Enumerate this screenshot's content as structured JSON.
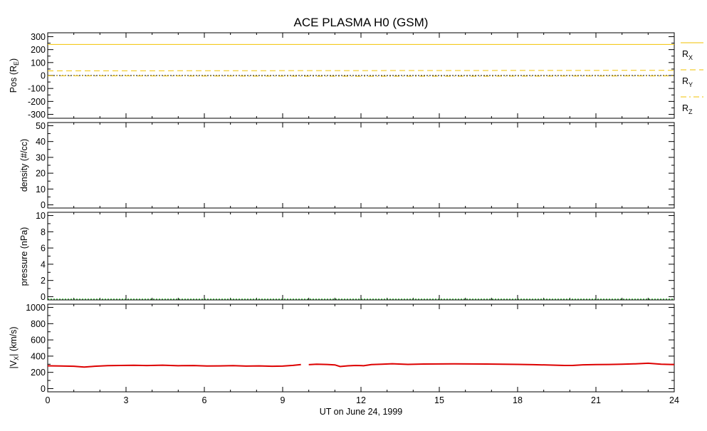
{
  "title": "ACE PLASMA H0 (GSM)",
  "xlabel": "UT on June 24, 1999",
  "x_ticks": [
    "0",
    "3",
    "6",
    "9",
    "12",
    "15",
    "18",
    "21",
    "24"
  ],
  "colors": {
    "position": "#f2c200",
    "position_zero": "#000000",
    "density": "#0000ff",
    "pressure": "#00a000",
    "velocity": "#dd0000"
  },
  "chart_data": [
    {
      "type": "line",
      "panel": "position",
      "ylabel_main": "Pos (R",
      "ylabel_sub": "E",
      "ylabel_end": ")",
      "y_ticks": [
        "300",
        "200",
        "100",
        "0",
        "-100",
        "-200",
        "-300"
      ],
      "ylim": [
        -330,
        330
      ],
      "xlim": [
        0,
        24
      ],
      "series": [
        {
          "name": "R",
          "name_sub": "X",
          "style": "solid",
          "x": [
            0,
            24
          ],
          "values": [
            240,
            240
          ]
        },
        {
          "name": "R",
          "name_sub": "Y",
          "style": "dashed",
          "x": [
            0,
            6,
            12,
            18,
            24
          ],
          "values": [
            36,
            37,
            38,
            39,
            40
          ]
        },
        {
          "name": "R",
          "name_sub": "Z",
          "style": "dashdot",
          "x": [
            0,
            6,
            12,
            18,
            24
          ],
          "values": [
            -2,
            -4,
            -6,
            -5,
            -3
          ]
        }
      ]
    },
    {
      "type": "line",
      "panel": "density",
      "ylabel": "density (#/cc)",
      "y_ticks": [
        "50",
        "40",
        "30",
        "20",
        "10",
        "0"
      ],
      "ylim": [
        -2,
        52
      ],
      "xlim": [
        0,
        24
      ],
      "series": []
    },
    {
      "type": "line",
      "panel": "pressure",
      "ylabel": "pressure (nPa)",
      "y_ticks": [
        "10",
        "8",
        "6",
        "4",
        "2",
        "0"
      ],
      "ylim": [
        -0.4,
        10.4
      ],
      "xlim": [
        0,
        24
      ],
      "series": [
        {
          "style": "dotted",
          "x": [
            0,
            24
          ],
          "values": [
            -0.3,
            -0.3
          ]
        }
      ]
    },
    {
      "type": "line",
      "panel": "velocity",
      "ylabel_main": "|V",
      "ylabel_sub": "X",
      "ylabel_end": "| (km/s)",
      "y_ticks": [
        "1000",
        "800",
        "600",
        "400",
        "200",
        "0"
      ],
      "ylim": [
        -40,
        1040
      ],
      "xlim": [
        0,
        24
      ],
      "series": [
        {
          "style": "solid",
          "segments": [
            {
              "x": [
                0,
                0.5,
                1.0,
                1.4,
                1.8,
                2.3,
                2.8,
                3.3,
                3.8,
                4.4,
                5.0,
                5.6,
                6.1,
                6.6,
                7.1,
                7.6,
                8.1,
                8.6,
                9.0,
                9.4,
                9.7
              ],
              "values": [
                280,
                278,
                275,
                265,
                275,
                283,
                285,
                287,
                284,
                288,
                282,
                284,
                278,
                279,
                283,
                277,
                279,
                275,
                277,
                286,
                296
              ]
            },
            {
              "x": [
                10.0,
                10.3,
                10.7,
                11.0,
                11.2,
                11.5,
                11.8,
                12.1,
                12.4,
                12.8,
                13.2,
                13.8,
                14.4,
                15.0,
                15.6,
                16.2,
                16.8,
                17.4,
                18.0,
                18.6,
                19.2,
                19.8,
                20.1,
                20.5,
                21.0,
                21.5,
                22.0,
                22.5,
                23.0,
                23.5,
                24.0
              ],
              "values": [
                295,
                300,
                297,
                292,
                272,
                280,
                285,
                282,
                296,
                300,
                306,
                298,
                302,
                303,
                305,
                304,
                302,
                300,
                298,
                295,
                290,
                285,
                285,
                293,
                296,
                297,
                300,
                305,
                312,
                300,
                296
              ]
            }
          ]
        }
      ]
    }
  ]
}
